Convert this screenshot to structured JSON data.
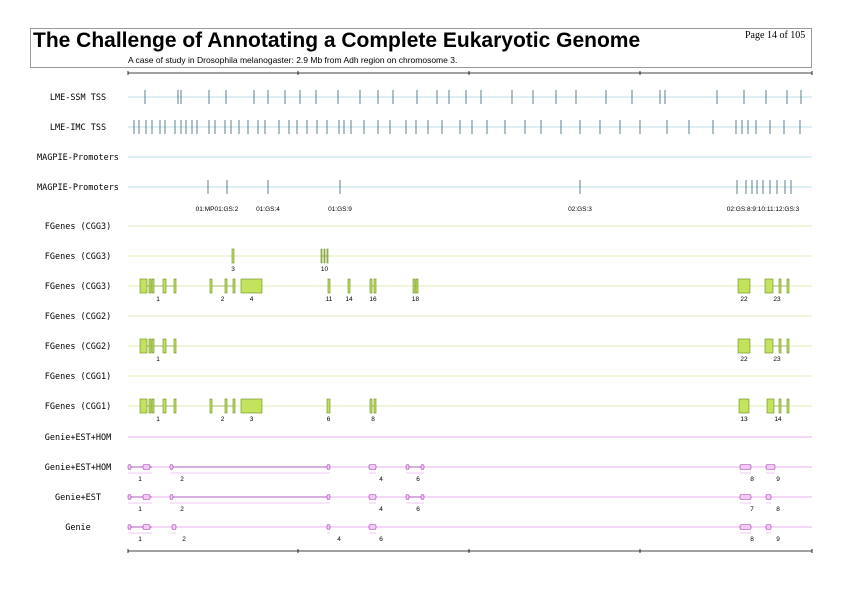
{
  "header": {
    "title": "The Challenge of Annotating a Complete Eukaryotic Genome",
    "page_number": "Page 14 of 105",
    "subtitle": "A case of study in Drosophila melanogaster: 2.9 Mb from Adh region on chromosome 3."
  },
  "footer": {
    "text": ""
  },
  "colors": {
    "tss_line": "#a8d8e0",
    "tss_tick": "#3a6070",
    "gene_line": "#d8e6a0",
    "gene_box": "#c4e35c",
    "gene_border": "#6a8a20",
    "genie_line": "#e090e8",
    "genie_box": "#f2c8f4",
    "genie_border": "#a040b0",
    "ruler": "#000000"
  },
  "tracks": [
    {
      "label": "LME-SSM TSS",
      "kind": "tss",
      "ticks": [
        145,
        178,
        181,
        209,
        226,
        254,
        268,
        285,
        300,
        316,
        338,
        360,
        378,
        393,
        417,
        437,
        449,
        466,
        481,
        512,
        533,
        556,
        576,
        606,
        632,
        660,
        665,
        717,
        744,
        766,
        787,
        801
      ]
    },
    {
      "label": "LME-IMC TSS",
      "kind": "tss",
      "ticks": [
        134,
        139,
        146,
        152,
        160,
        165,
        175,
        181,
        186,
        192,
        197,
        209,
        215,
        225,
        231,
        239,
        248,
        258,
        265,
        279,
        289,
        297,
        307,
        317,
        327,
        339,
        344,
        351,
        364,
        378,
        390,
        406,
        416,
        428,
        442,
        460,
        472,
        487,
        505,
        525,
        541,
        561,
        580,
        600,
        620,
        640,
        667,
        689,
        713,
        736,
        742,
        748,
        756,
        770,
        784,
        800
      ]
    },
    {
      "label": "MAGPIE-Promoters",
      "kind": "tss",
      "ticks": []
    },
    {
      "label": "MAGPIE-Promoters",
      "kind": "tss",
      "ticks": [
        208,
        227,
        268,
        340,
        580,
        737,
        746,
        752,
        757,
        763,
        770,
        777,
        785,
        791
      ],
      "tick_labels": [
        {
          "text": "01:MP01:GS:2",
          "x": 217
        },
        {
          "text": "01:GS:4",
          "x": 268
        },
        {
          "text": "01:GS:9",
          "x": 340
        },
        {
          "text": "02:GS:3",
          "x": 580
        },
        {
          "text": "02:GS:8:9:10:11:12:GS:3",
          "x": 763
        }
      ]
    },
    {
      "label": "FGenes (CGG3)",
      "kind": "gene",
      "genes": []
    },
    {
      "label": "FGenes (CGG3)",
      "kind": "gene",
      "genes": [
        {
          "label": "3",
          "from": 232,
          "to": 234,
          "exons": [
            [
              232,
              234
            ]
          ]
        },
        {
          "label": "10",
          "from": 321,
          "to": 328,
          "exons": [
            [
              321,
              322
            ],
            [
              324,
              325
            ],
            [
              327,
              328
            ]
          ]
        }
      ]
    },
    {
      "label": "FGenes (CGG3)",
      "kind": "gene",
      "genes": [
        {
          "label": "1",
          "from": 140,
          "to": 176,
          "exons": [
            [
              140,
              147
            ],
            [
              149,
              151
            ],
            [
              152,
              154
            ],
            [
              163,
              166
            ],
            [
              174,
              176
            ]
          ]
        },
        {
          "label": "2",
          "from": 210,
          "to": 235,
          "exons": [
            [
              210,
              212
            ],
            [
              225,
              227
            ],
            [
              233,
              235
            ]
          ]
        },
        {
          "label": "4",
          "from": 241,
          "to": 262,
          "exons": [
            [
              241,
              262
            ]
          ]
        },
        {
          "label": "11",
          "from": 328,
          "to": 330,
          "exons": [
            [
              328,
              330
            ]
          ]
        },
        {
          "label": "14",
          "from": 348,
          "to": 350,
          "exons": [
            [
              348,
              350
            ]
          ]
        },
        {
          "label": "16",
          "from": 370,
          "to": 376,
          "exons": [
            [
              370,
              372
            ],
            [
              374,
              376
            ]
          ]
        },
        {
          "label": "18",
          "from": 413,
          "to": 418,
          "exons": [
            [
              413,
              415
            ],
            [
              416,
              418
            ]
          ]
        },
        {
          "label": "22",
          "from": 738,
          "to": 750,
          "exons": [
            [
              738,
              750
            ]
          ]
        },
        {
          "label": "23",
          "from": 765,
          "to": 789,
          "exons": [
            [
              765,
              773
            ],
            [
              779,
              781
            ],
            [
              787,
              789
            ]
          ]
        }
      ]
    },
    {
      "label": "FGenes (CGG2)",
      "kind": "gene",
      "genes": []
    },
    {
      "label": "FGenes (CGG2)",
      "kind": "gene",
      "genes": [
        {
          "label": "1",
          "from": 140,
          "to": 176,
          "exons": [
            [
              140,
              147
            ],
            [
              149,
              151
            ],
            [
              152,
              154
            ],
            [
              163,
              166
            ],
            [
              174,
              176
            ]
          ]
        },
        {
          "label": "22",
          "from": 738,
          "to": 750,
          "exons": [
            [
              738,
              750
            ]
          ]
        },
        {
          "label": "23",
          "from": 765,
          "to": 789,
          "exons": [
            [
              765,
              773
            ],
            [
              779,
              781
            ],
            [
              787,
              789
            ]
          ]
        }
      ]
    },
    {
      "label": "FGenes (CGG1)",
      "kind": "gene",
      "genes": []
    },
    {
      "label": "FGenes (CGG1)",
      "kind": "gene",
      "genes": [
        {
          "label": "1",
          "from": 140,
          "to": 176,
          "exons": [
            [
              140,
              147
            ],
            [
              149,
              151
            ],
            [
              152,
              154
            ],
            [
              163,
              166
            ],
            [
              174,
              176
            ]
          ]
        },
        {
          "label": "2",
          "from": 210,
          "to": 235,
          "exons": [
            [
              210,
              212
            ],
            [
              225,
              227
            ],
            [
              233,
              235
            ]
          ]
        },
        {
          "label": "3",
          "from": 241,
          "to": 262,
          "exons": [
            [
              241,
              262
            ]
          ]
        },
        {
          "label": "6",
          "from": 327,
          "to": 330,
          "exons": [
            [
              327,
              330
            ]
          ]
        },
        {
          "label": "8",
          "from": 370,
          "to": 376,
          "exons": [
            [
              370,
              372
            ],
            [
              374,
              376
            ]
          ]
        },
        {
          "label": "13",
          "from": 739,
          "to": 749,
          "exons": [
            [
              739,
              749
            ]
          ]
        },
        {
          "label": "14",
          "from": 767,
          "to": 789,
          "exons": [
            [
              767,
              774
            ],
            [
              779,
              781
            ],
            [
              787,
              789
            ]
          ]
        }
      ]
    },
    {
      "label": "Genie+EST+HOM",
      "kind": "genie",
      "genes": []
    },
    {
      "label": "Genie+EST+HOM",
      "kind": "genie",
      "genes": [
        {
          "label": "1",
          "from": 128,
          "to": 152,
          "exons": [
            [
              128,
              131
            ],
            [
              143,
              150
            ]
          ]
        },
        {
          "label": "2",
          "from": 170,
          "to": 330,
          "exons": [
            [
              170,
              173
            ],
            [
              327,
              330
            ]
          ]
        },
        {
          "label": "4",
          "from": 369,
          "to": 376,
          "exons": [
            [
              369,
              376
            ]
          ]
        },
        {
          "label": "6",
          "from": 406,
          "to": 424,
          "exons": [
            [
              406,
              409
            ],
            [
              421,
              424
            ]
          ]
        },
        {
          "label": "8",
          "from": 740,
          "to": 751,
          "exons": [
            [
              740,
              751
            ]
          ]
        },
        {
          "label": "9",
          "from": 766,
          "to": 775,
          "exons": [
            [
              766,
              775
            ]
          ]
        }
      ]
    },
    {
      "label": "Genie+EST",
      "kind": "genie",
      "genes": [
        {
          "label": "1",
          "from": 128,
          "to": 152,
          "exons": [
            [
              128,
              131
            ],
            [
              143,
              150
            ]
          ]
        },
        {
          "label": "2",
          "from": 170,
          "to": 330,
          "exons": [
            [
              170,
              173
            ],
            [
              327,
              330
            ]
          ]
        },
        {
          "label": "4",
          "from": 369,
          "to": 376,
          "exons": [
            [
              369,
              376
            ]
          ]
        },
        {
          "label": "6",
          "from": 406,
          "to": 424,
          "exons": [
            [
              406,
              409
            ],
            [
              421,
              424
            ]
          ]
        },
        {
          "label": "7",
          "from": 740,
          "to": 751,
          "exons": [
            [
              740,
              751
            ]
          ]
        },
        {
          "label": "8",
          "from": 766,
          "to": 771,
          "exons": [
            [
              766,
              771
            ]
          ]
        }
      ]
    },
    {
      "label": "Genie",
      "kind": "genie",
      "genes": [
        {
          "label": "1",
          "from": 128,
          "to": 152,
          "exons": [
            [
              128,
              131
            ],
            [
              143,
              150
            ]
          ]
        },
        {
          "label": "2",
          "from": 172,
          "to": 176,
          "exons": [
            [
              172,
              176
            ]
          ]
        },
        {
          "label": "4",
          "from": 327,
          "to": 330,
          "exons": [
            [
              327,
              330
            ]
          ]
        },
        {
          "label": "6",
          "from": 369,
          "to": 376,
          "exons": [
            [
              369,
              376
            ]
          ]
        },
        {
          "label": "8",
          "from": 740,
          "to": 751,
          "exons": [
            [
              740,
              751
            ]
          ]
        },
        {
          "label": "9",
          "from": 766,
          "to": 771,
          "exons": [
            [
              766,
              771
            ]
          ]
        }
      ]
    }
  ]
}
